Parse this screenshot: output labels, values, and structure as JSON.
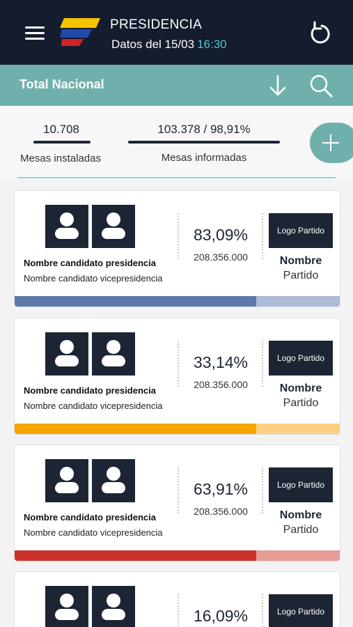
{
  "header": {
    "title": "PRESIDENCIA",
    "subtitle": "Datos del 15/03",
    "time": "16:30",
    "menu_icon": "hamburger-menu-icon",
    "refresh_icon": "refresh-icon",
    "colors": {
      "background": "#141c2e",
      "time": "#4cc6d2",
      "flag_yellow": "#f5c400",
      "flag_blue": "#1f4ba8",
      "flag_red": "#d3222a"
    }
  },
  "subheader": {
    "title": "Total Nacional",
    "download_icon": "arrow-down-icon",
    "search_icon": "search-icon",
    "color": "#6fb0ad"
  },
  "stats": {
    "installed_value": "10.708",
    "installed_label": "Mesas instaladas",
    "reported_value": "103.378 / 98,91%",
    "reported_label": "Mesas informadas",
    "add_icon": "plus-icon"
  },
  "candidates": [
    {
      "photo_icon": "person-icon",
      "president": "Nombre candidato presidencia",
      "vice": "Nombre candidato vicepresidencia",
      "percent": "83,09%",
      "votes": "208.356.000",
      "party_logo": "Logo Partido",
      "party_name": "Nombre",
      "party_sub": "Partido",
      "bar_fill_fraction": 0.74,
      "bar_color": "#5c78ab",
      "bar_track_color": "#aebbd6"
    },
    {
      "photo_icon": "person-icon",
      "president": "Nombre candidato presidencia",
      "vice": "Nombre candidato vicepresidencia",
      "percent": "33,14%",
      "votes": "208.356.000",
      "party_logo": "Logo Partido",
      "party_name": "Nombre",
      "party_sub": "Partido",
      "bar_fill_fraction": 0.74,
      "bar_color": "#f7a500",
      "bar_track_color": "#fcd083"
    },
    {
      "photo_icon": "person-icon",
      "president": "Nombre candidato presidencia",
      "vice": "Nombre candidato vicepresidencia",
      "percent": "63,91%",
      "votes": "208.356.000",
      "party_logo": "Logo Partido",
      "party_name": "Nombre",
      "party_sub": "Partido",
      "bar_fill_fraction": 0.74,
      "bar_color": "#cc332d",
      "bar_track_color": "#e69b97"
    },
    {
      "photo_icon": "person-icon",
      "percent": "16,09%",
      "party_logo": "Logo Partido"
    }
  ]
}
